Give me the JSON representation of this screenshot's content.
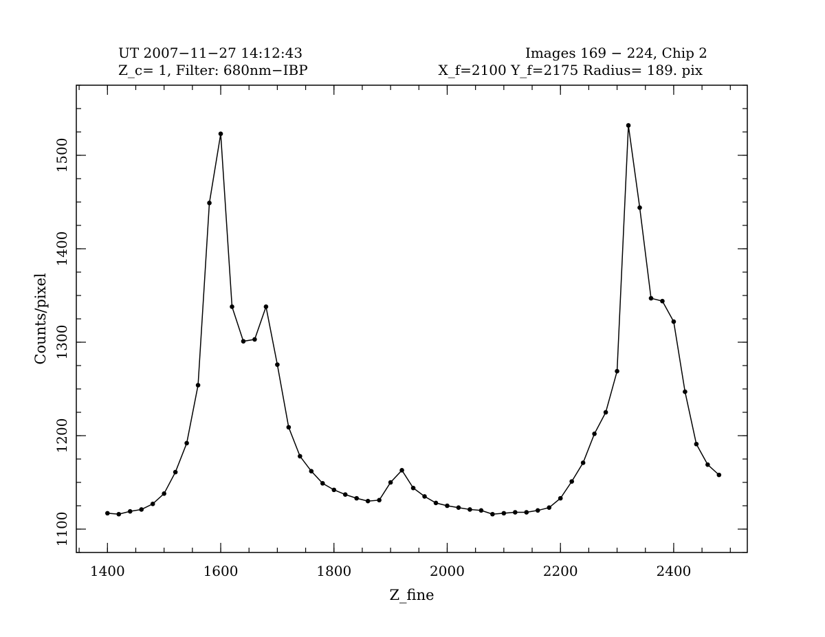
{
  "header": {
    "line1_left": "UT 2007−11−27 14:12:43",
    "line1_right": "Images  169 −  224,  Chip 2",
    "line2_left": "Z_c= 1,  Filter: 680nm−IBP",
    "line2_right": "X_f=2100  Y_f=2175  Radius= 189. pix"
  },
  "chart_data": {
    "type": "line",
    "title": "",
    "xlabel": "Z_fine",
    "ylabel": "Counts/pixel",
    "xlim": [
      1345,
      2530
    ],
    "ylim": [
      1075,
      1575
    ],
    "x_ticks": [
      1400,
      1600,
      1800,
      2000,
      2200,
      2400
    ],
    "y_ticks": [
      1100,
      1200,
      1300,
      1400,
      1500
    ],
    "x_minor_step": 50,
    "y_minor_step": 25,
    "grid": false,
    "markers": true,
    "series": [
      {
        "x": [
          1400,
          1420,
          1440,
          1460,
          1480,
          1500,
          1520,
          1540,
          1560,
          1580,
          1600,
          1620,
          1640,
          1660,
          1680,
          1700,
          1720,
          1740,
          1760,
          1780,
          1800,
          1820,
          1840,
          1860,
          1880,
          1900,
          1920,
          1940,
          1960,
          1980,
          2000,
          2020,
          2040,
          2060,
          2080,
          2100,
          2120,
          2140,
          2160,
          2180,
          2200,
          2220,
          2240,
          2260,
          2280,
          2300,
          2320,
          2340,
          2360,
          2380,
          2400,
          2420,
          2440,
          2460,
          2480
        ],
        "y": [
          1117,
          1116,
          1119,
          1121,
          1127,
          1138,
          1161,
          1192,
          1254,
          1449,
          1523,
          1338,
          1301,
          1303,
          1338,
          1276,
          1209,
          1178,
          1162,
          1149,
          1142,
          1137,
          1133,
          1130,
          1131,
          1150,
          1163,
          1144,
          1135,
          1128,
          1125,
          1123,
          1121,
          1120,
          1116,
          1117,
          1118,
          1118,
          1120,
          1123,
          1133,
          1151,
          1171,
          1202,
          1225,
          1269,
          1532,
          1444,
          1347,
          1344,
          1322,
          1247,
          1191,
          1169,
          1158
        ]
      }
    ]
  }
}
